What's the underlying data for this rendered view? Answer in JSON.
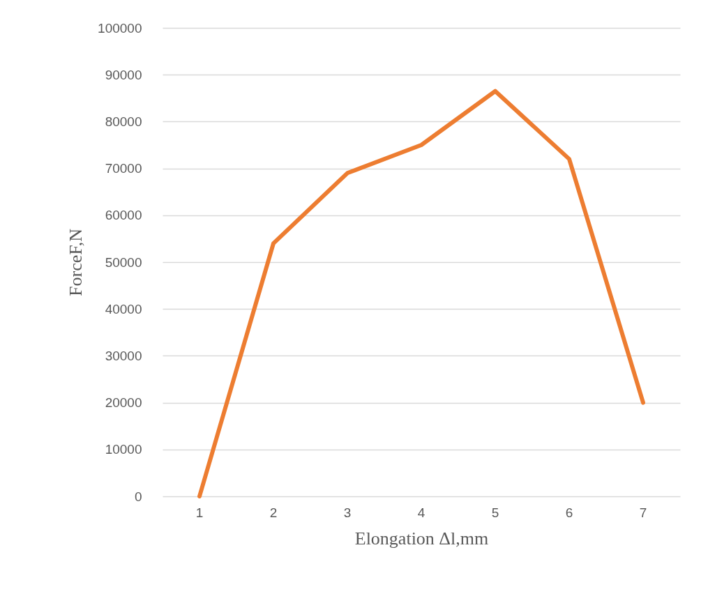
{
  "chart_data": {
    "type": "line",
    "xlabel": "Elongation Δl,mm",
    "ylabel": "ForceF,N",
    "categories": [
      "1",
      "2",
      "3",
      "4",
      "5",
      "6",
      "7"
    ],
    "series": [
      {
        "color": "#ed7d31",
        "values": [
          0,
          54000,
          69000,
          75000,
          86500,
          72000,
          20000
        ]
      }
    ],
    "ylim": [
      0,
      100000
    ],
    "yticks": [
      0,
      10000,
      20000,
      30000,
      40000,
      50000,
      60000,
      70000,
      80000,
      90000,
      100000
    ],
    "grid": "y",
    "legend": false,
    "marker": "none",
    "line_style": "solid"
  }
}
